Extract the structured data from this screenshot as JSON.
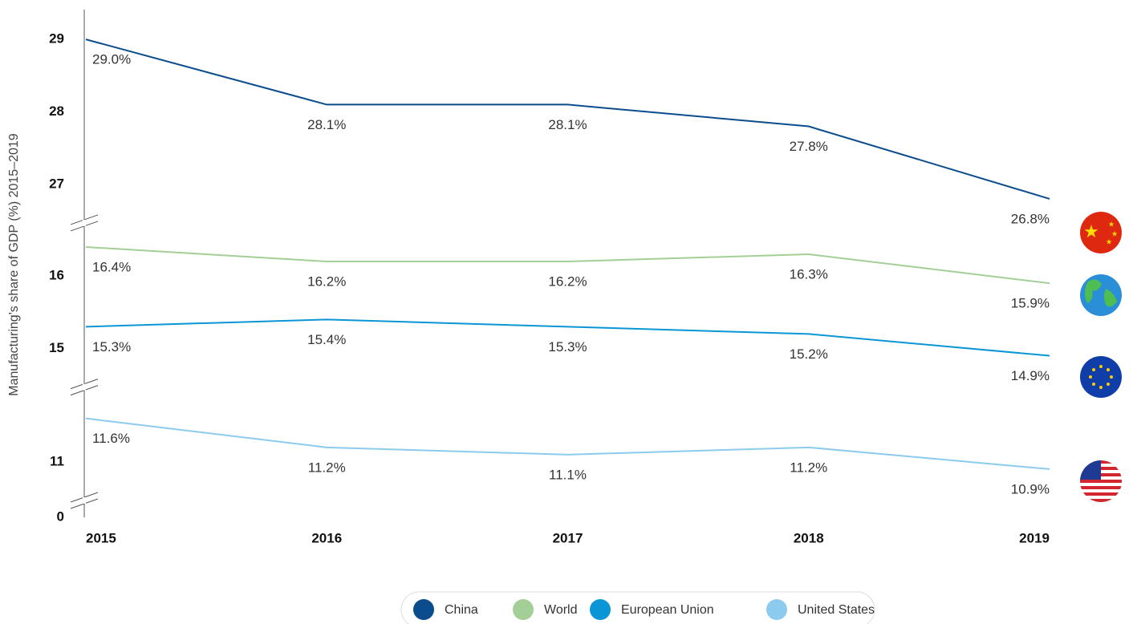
{
  "chart_data": {
    "type": "line",
    "y_label": "Manufacturing's share of GDP (%) 2015–2019",
    "categories": [
      "2015",
      "2016",
      "2017",
      "2018",
      "2019"
    ],
    "series": [
      {
        "name": "China",
        "color": "#0b4c8c",
        "values": [
          29.0,
          28.1,
          28.1,
          27.8,
          26.8
        ],
        "value_labels": [
          "29.0%",
          "28.1%",
          "28.1%",
          "27.8%",
          "26.8%"
        ]
      },
      {
        "name": "World",
        "color": "#a3cf96",
        "values": [
          16.4,
          16.2,
          16.2,
          16.3,
          15.9
        ],
        "value_labels": [
          "16.4%",
          "16.2%",
          "16.2%",
          "16.3%",
          "15.9%"
        ]
      },
      {
        "name": "European Union",
        "color": "#0a96d6",
        "values": [
          15.3,
          15.4,
          15.3,
          15.2,
          14.9
        ],
        "value_labels": [
          "15.3%",
          "15.4%",
          "15.3%",
          "15.2%",
          "14.9%"
        ]
      },
      {
        "name": "United States",
        "color": "#8ccbee",
        "values": [
          11.6,
          11.2,
          11.1,
          11.2,
          10.9
        ],
        "value_labels": [
          "11.6%",
          "11.2%",
          "11.1%",
          "11.2%",
          "10.9%"
        ]
      }
    ],
    "ylim": [
      0,
      29.3
    ],
    "yticks": [
      0,
      11,
      15,
      16,
      27,
      28,
      29
    ],
    "axis_breaks": [
      [
        0,
        10.7
      ],
      [
        11.8,
        14.7
      ],
      [
        16.5,
        26.7
      ]
    ],
    "grid": false,
    "legend": "bottom"
  }
}
